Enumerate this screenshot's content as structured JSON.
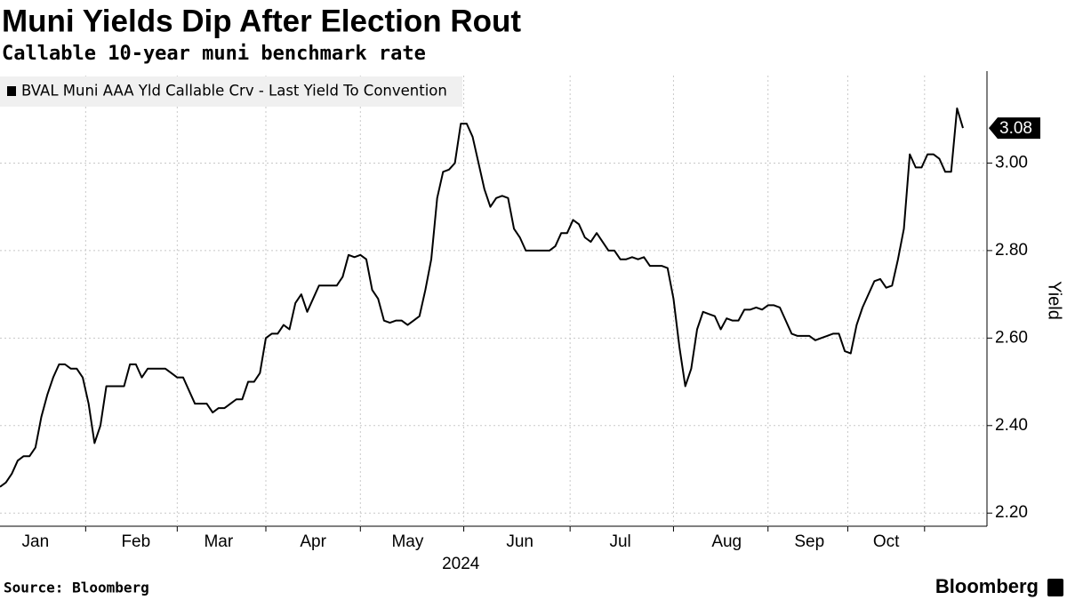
{
  "chart_data": {
    "type": "line",
    "title": "Muni Yields Dip After Election Rout",
    "subtitle": "Callable 10-year muni benchmark rate",
    "source": "Source: Bloomberg",
    "brand": "Bloomberg",
    "xlabel": "2024",
    "ylabel": "Yield",
    "grid": true,
    "legend": "top-left",
    "ylim": [
      2.17,
      3.2
    ],
    "yticks": [
      {
        "value": 2.2,
        "label": "2.20"
      },
      {
        "value": 2.4,
        "label": "2.40"
      },
      {
        "value": 2.6,
        "label": "2.60"
      },
      {
        "value": 2.8,
        "label": "2.80"
      },
      {
        "value": 3.0,
        "label": "3.00"
      }
    ],
    "categories": [
      null,
      null,
      null,
      null,
      null,
      null,
      "Jan",
      null,
      null,
      null,
      null,
      null,
      null,
      null,
      null,
      null,
      null,
      null,
      null,
      null,
      null,
      null,
      null,
      "Feb",
      null,
      null,
      null,
      null,
      null,
      null,
      null,
      null,
      null,
      null,
      null,
      null,
      null,
      "Mar",
      null,
      null,
      null,
      null,
      null,
      null,
      null,
      null,
      null,
      null,
      null,
      null,
      null,
      null,
      null,
      "Apr",
      null,
      null,
      null,
      null,
      null,
      null,
      null,
      null,
      null,
      null,
      null,
      null,
      null,
      null,
      null,
      "May",
      null,
      null,
      null,
      null,
      null,
      null,
      null,
      null,
      null,
      null,
      null,
      null,
      null,
      null,
      null,
      null,
      null,
      null,
      "Jun",
      null,
      null,
      null,
      null,
      null,
      null,
      null,
      null,
      null,
      null,
      null,
      null,
      null,
      null,
      null,
      null,
      "Jul",
      null,
      null,
      null,
      null,
      null,
      null,
      null,
      null,
      null,
      null,
      null,
      null,
      null,
      null,
      null,
      null,
      null,
      "Aug",
      null,
      null,
      null,
      null,
      null,
      null,
      null,
      null,
      null,
      null,
      null,
      null,
      null,
      "Sep",
      null,
      null,
      null,
      null,
      null,
      null,
      null,
      null,
      null,
      null,
      null,
      null,
      "Oct",
      null,
      null,
      null,
      null,
      null,
      null,
      null,
      null,
      null,
      null,
      null,
      null,
      null
    ],
    "series": [
      {
        "name": "BVAL Muni AAA Yld Callable Crv - Last Yield To Convention",
        "color": "#000000",
        "values": [
          2.26,
          2.27,
          2.29,
          2.32,
          2.33,
          2.33,
          2.35,
          2.42,
          2.47,
          2.51,
          2.54,
          2.54,
          2.53,
          2.53,
          2.51,
          2.45,
          2.36,
          2.4,
          2.49,
          2.49,
          2.49,
          2.49,
          2.54,
          2.54,
          2.51,
          2.53,
          2.53,
          2.53,
          2.53,
          2.52,
          2.51,
          2.51,
          2.48,
          2.45,
          2.45,
          2.45,
          2.43,
          2.44,
          2.44,
          2.45,
          2.46,
          2.46,
          2.5,
          2.5,
          2.52,
          2.6,
          2.61,
          2.61,
          2.63,
          2.62,
          2.68,
          2.7,
          2.66,
          2.69,
          2.72,
          2.72,
          2.72,
          2.72,
          2.74,
          2.79,
          2.785,
          2.79,
          2.78,
          2.71,
          2.69,
          2.64,
          2.635,
          2.64,
          2.64,
          2.63,
          2.64,
          2.65,
          2.71,
          2.78,
          2.92,
          2.98,
          2.985,
          3.0,
          3.09,
          3.09,
          3.06,
          3.0,
          2.94,
          2.9,
          2.92,
          2.925,
          2.92,
          2.85,
          2.83,
          2.8,
          2.8,
          2.8,
          2.8,
          2.8,
          2.81,
          2.84,
          2.84,
          2.87,
          2.86,
          2.83,
          2.82,
          2.84,
          2.82,
          2.8,
          2.8,
          2.78,
          2.78,
          2.785,
          2.78,
          2.785,
          2.765,
          2.765,
          2.765,
          2.76,
          2.69,
          2.58,
          2.49,
          2.53,
          2.62,
          2.66,
          2.655,
          2.65,
          2.62,
          2.645,
          2.64,
          2.64,
          2.665,
          2.665,
          2.67,
          2.665,
          2.675,
          2.675,
          2.67,
          2.64,
          2.61,
          2.605,
          2.605,
          2.605,
          2.595,
          2.6,
          2.605,
          2.61,
          2.61,
          2.57,
          2.565,
          2.63,
          2.67,
          2.7,
          2.73,
          2.735,
          2.715,
          2.72,
          2.78,
          2.85,
          3.02,
          2.99,
          2.99,
          3.02,
          3.02,
          3.01,
          2.98,
          2.98,
          3.125,
          3.08
        ],
        "value_labels": [
          null,
          null,
          null,
          null,
          null,
          null,
          null,
          null,
          null,
          null,
          null,
          null,
          null,
          null,
          null,
          null,
          null,
          null,
          null,
          null,
          null,
          null,
          null,
          null,
          null,
          null,
          null,
          null,
          null,
          null,
          null,
          null,
          null,
          null,
          null,
          null,
          null,
          null,
          null,
          null,
          null,
          null,
          null,
          null,
          null,
          null,
          null,
          null,
          null,
          null,
          null,
          null,
          null,
          null,
          null,
          null,
          null,
          null,
          null,
          null,
          null,
          null,
          null,
          null,
          null,
          null,
          null,
          null,
          null,
          null,
          null,
          null,
          null,
          null,
          null,
          null,
          null,
          null,
          null,
          null,
          null,
          null,
          null,
          null,
          null,
          null,
          null,
          null,
          null,
          null,
          null,
          null,
          null,
          null,
          null,
          null,
          null,
          null,
          null,
          null,
          null,
          null,
          null,
          null,
          null,
          null,
          null,
          null,
          null,
          null,
          null,
          null,
          null,
          null,
          null,
          null,
          null,
          null,
          null,
          null,
          null,
          null,
          null,
          null,
          null,
          null,
          null,
          null,
          null,
          null,
          null,
          null,
          null,
          null,
          null,
          null,
          null,
          null,
          null,
          null,
          null,
          null,
          null,
          null,
          null,
          null,
          null,
          null,
          null,
          null,
          null,
          null,
          null,
          null,
          null,
          null,
          null,
          null,
          null,
          null,
          null,
          null,
          null,
          "3.08"
        ]
      }
    ]
  }
}
